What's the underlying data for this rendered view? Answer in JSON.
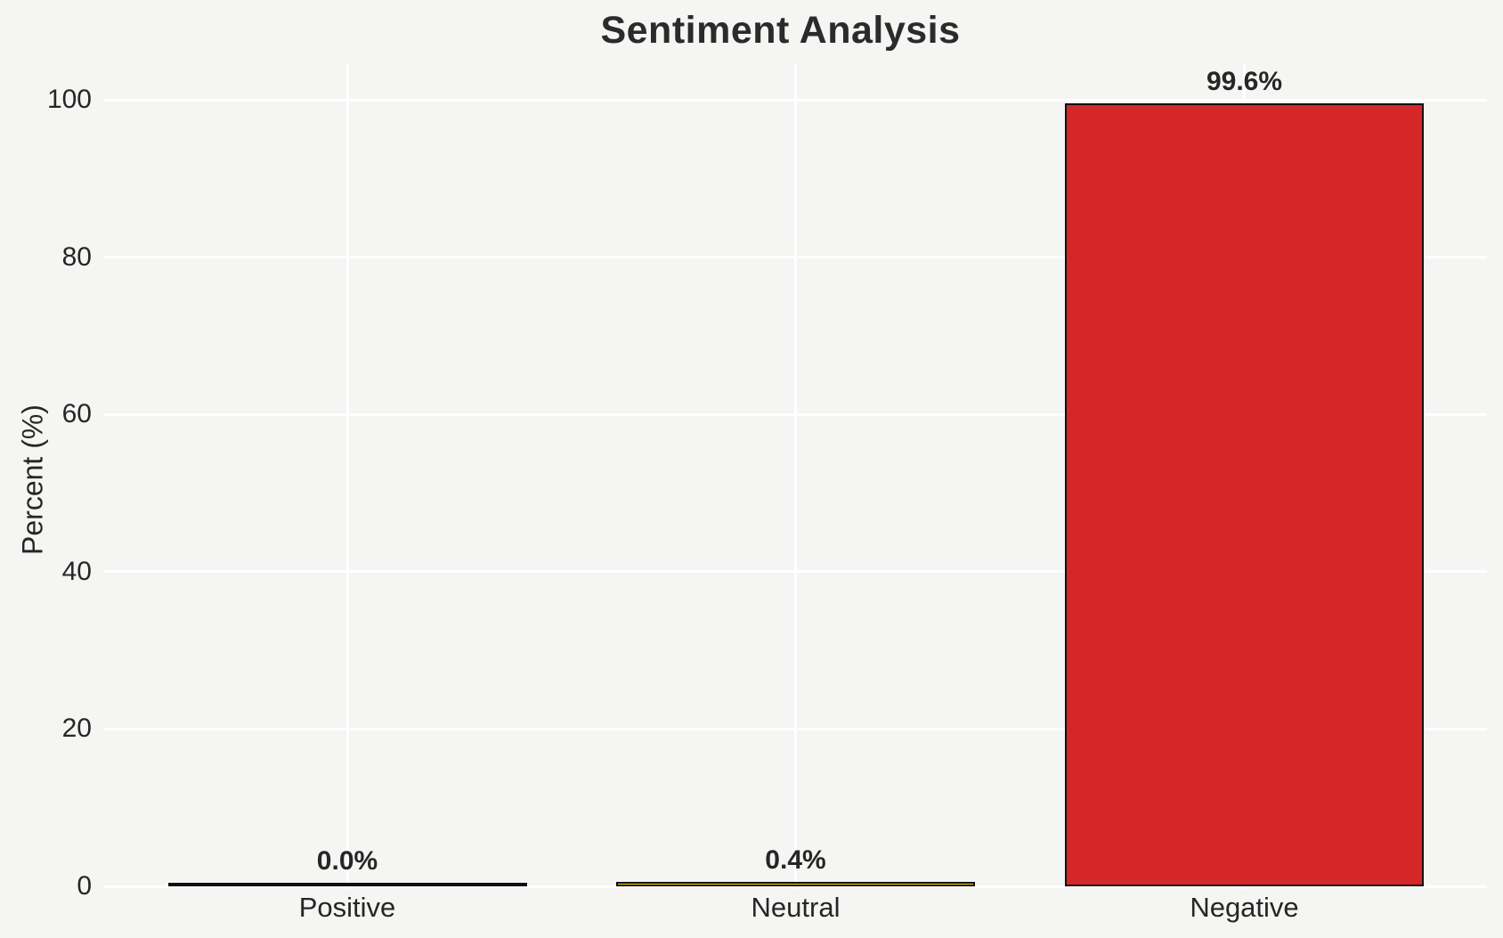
{
  "chart_data": {
    "type": "bar",
    "title": "Sentiment Analysis",
    "xlabel": "",
    "ylabel": "Percent (%)",
    "categories": [
      "Positive",
      "Neutral",
      "Negative"
    ],
    "values": [
      0.0,
      0.4,
      99.6
    ],
    "value_labels": [
      "0.0%",
      "0.4%",
      "99.6%"
    ],
    "y_ticks": [
      "0",
      "20",
      "40",
      "60",
      "80",
      "100"
    ],
    "y_tick_values": [
      0,
      20,
      40,
      60,
      80,
      100
    ],
    "ylim": [
      0,
      104.6
    ],
    "grid": "on",
    "legend": "none",
    "colors": {
      "bar_fills": [
        "#2ca02c",
        "#ffd700",
        "#d62728"
      ],
      "bar_edge": "#111111",
      "background": "#f5f5f3",
      "gridline": "#ffffff",
      "text": "#262626"
    }
  }
}
